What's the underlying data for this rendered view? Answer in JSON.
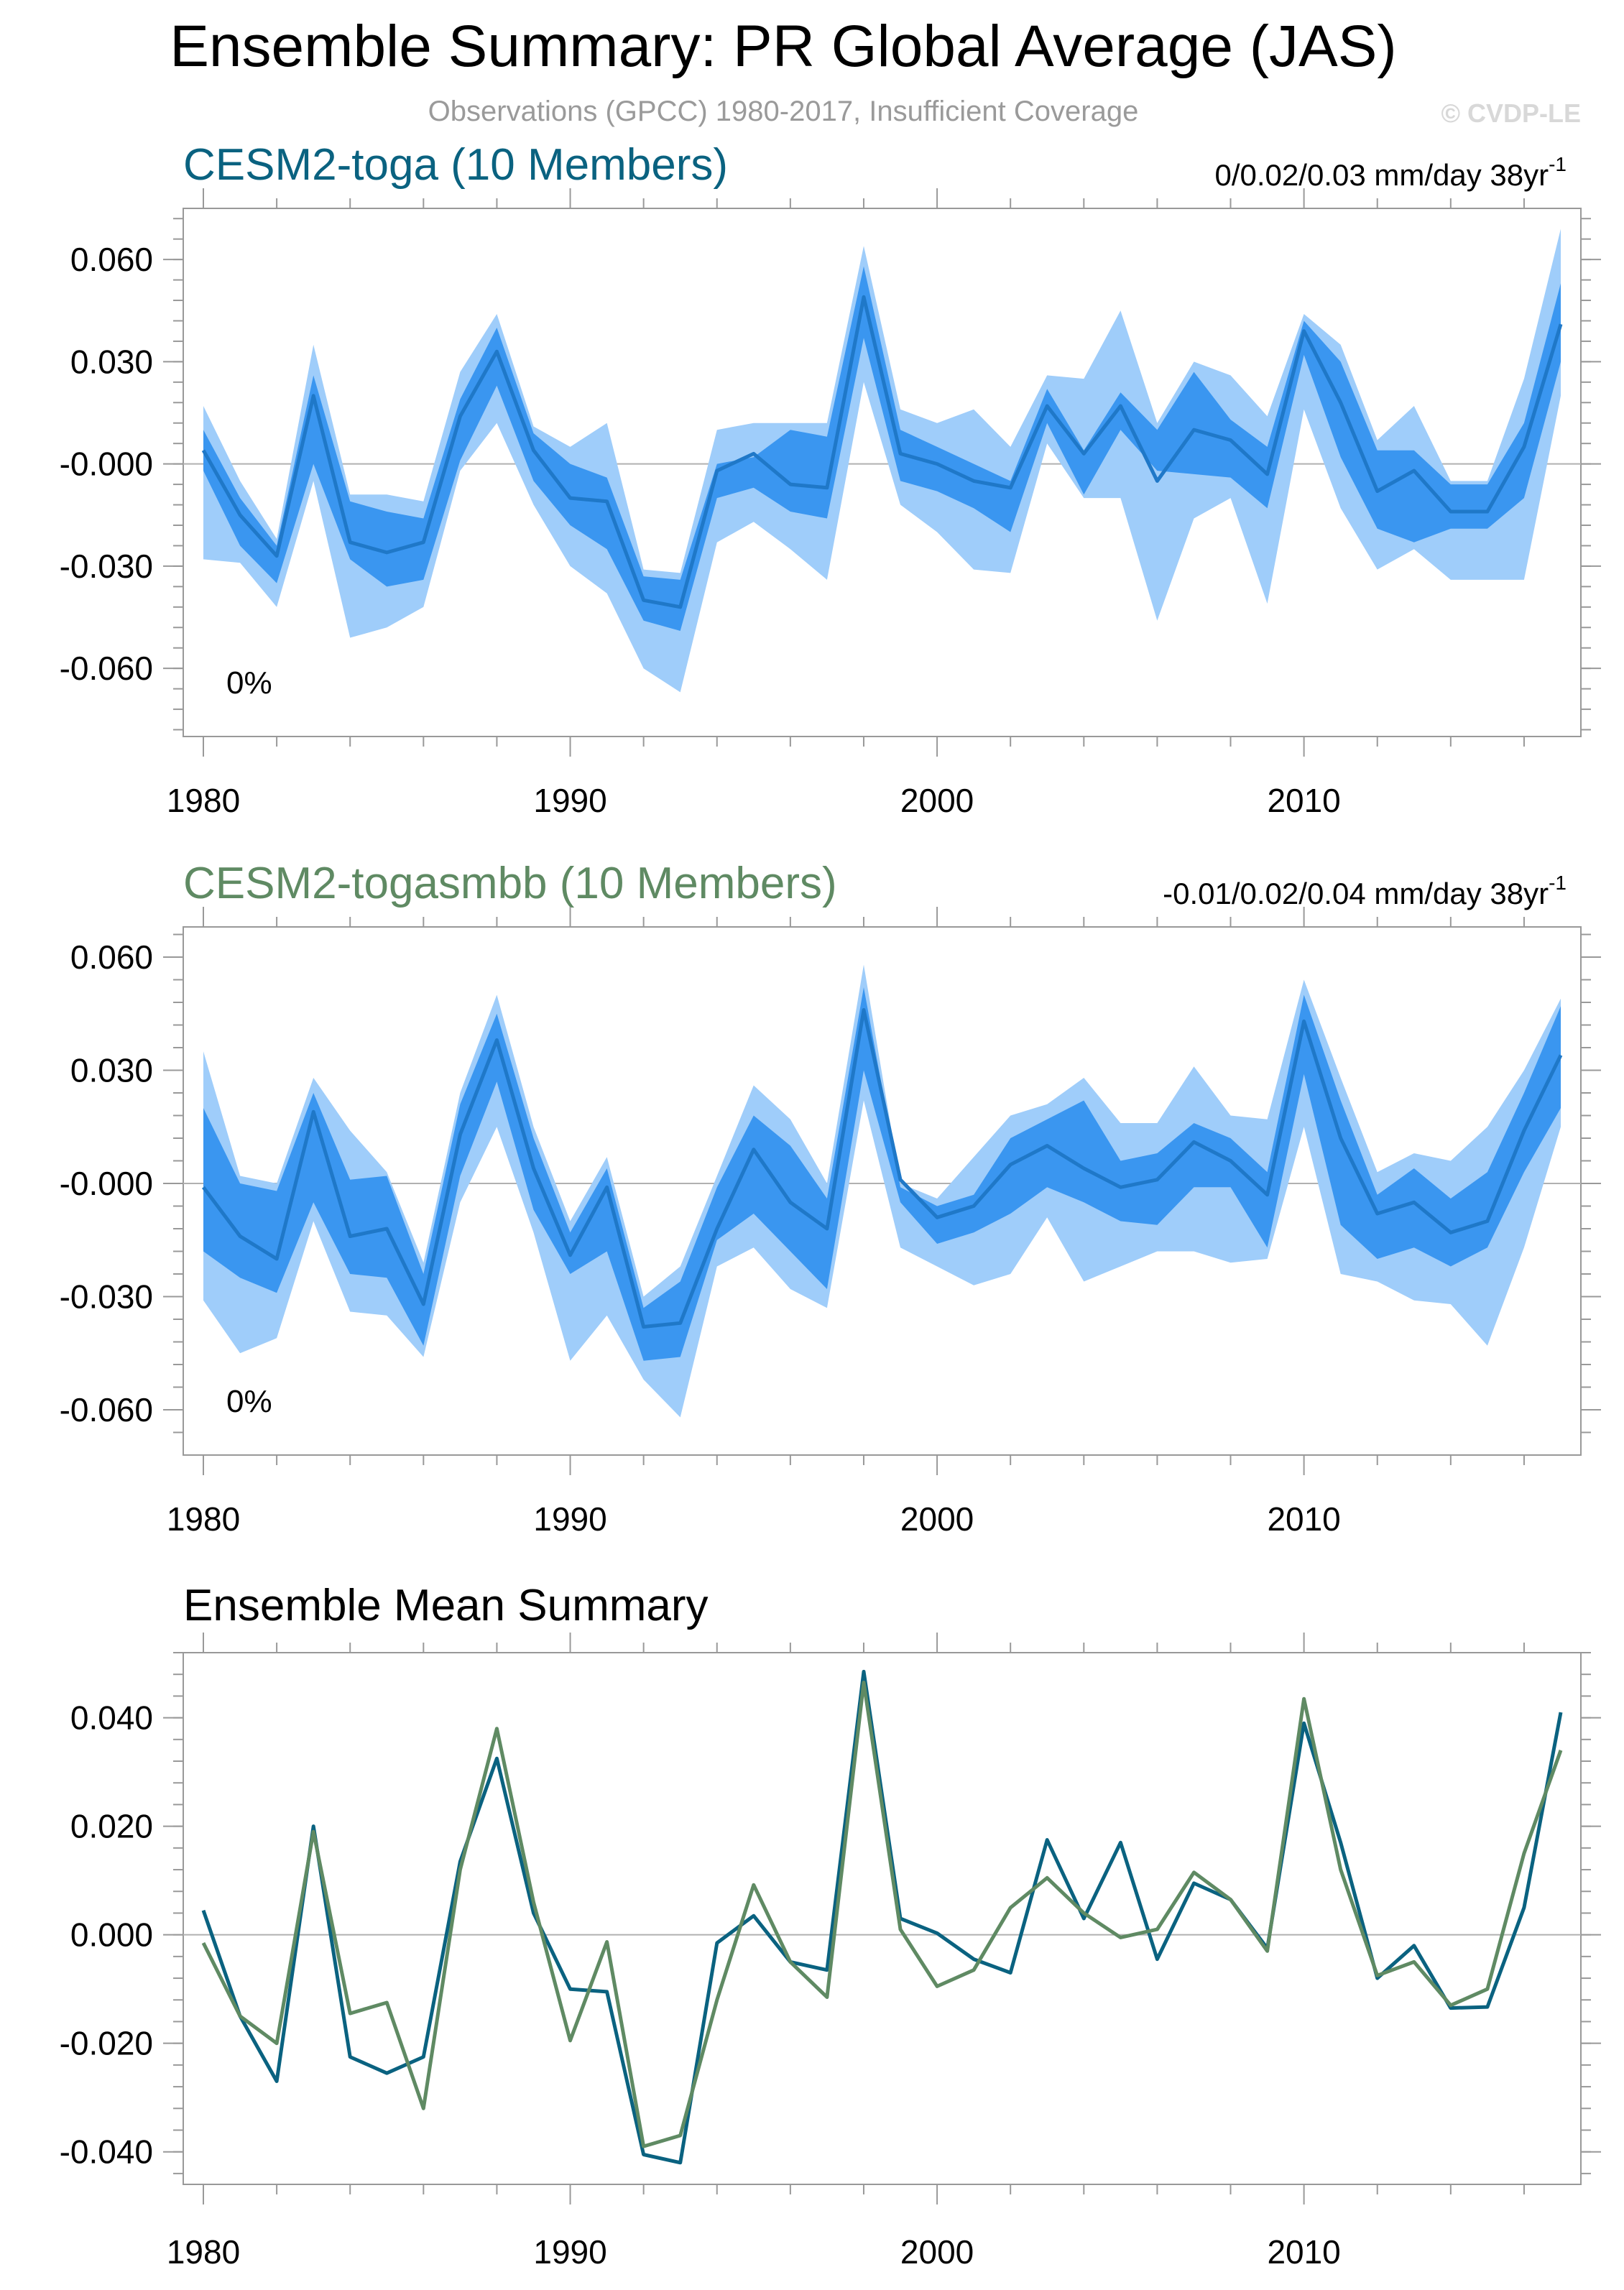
{
  "header": {
    "title": "Ensemble Summary: PR Global Average (JAS)",
    "subtitle": "Observations (GPCC) 1980-2017, Insufficient Coverage",
    "watermark": "© CVDP-LE"
  },
  "colors": {
    "toga": "#0a6280",
    "togasmbb": "#5f8a63",
    "band_outer": "#9fcdfa",
    "band_inner": "#3a96f0",
    "mean_line": "#1f78c8"
  },
  "chart_data": [
    {
      "type": "area",
      "title": "CESM2-toga (10 Members)",
      "title_color": "#0a6280",
      "trend_label": "0/0.02/0.03 mm/day 38yr",
      "trend_exp": "-1",
      "pct_label": "0%",
      "x": [
        1980,
        1981,
        1982,
        1983,
        1984,
        1985,
        1986,
        1987,
        1988,
        1989,
        1990,
        1991,
        1992,
        1993,
        1994,
        1995,
        1996,
        1997,
        1998,
        1999,
        2000,
        2001,
        2002,
        2003,
        2004,
        2005,
        2006,
        2007,
        2008,
        2009,
        2010,
        2011,
        2012,
        2013,
        2014,
        2015,
        2016,
        2017
      ],
      "xticks": [
        1980,
        1990,
        2000,
        2010
      ],
      "xlim": [
        1980,
        2017
      ],
      "ylim": [
        -0.08,
        0.075
      ],
      "yticks": [
        0.06,
        0.03,
        -0.0,
        -0.03,
        -0.06
      ],
      "ytick_labels": [
        "0.060",
        "0.030",
        "-0.000",
        "-0.030",
        "-0.060"
      ],
      "series": [
        {
          "name": "max",
          "values": [
            0.017,
            -0.005,
            -0.022,
            0.035,
            -0.009,
            -0.009,
            -0.011,
            0.027,
            0.044,
            0.011,
            0.005,
            0.012,
            -0.031,
            -0.032,
            0.01,
            0.012,
            0.012,
            0.012,
            0.064,
            0.016,
            0.012,
            0.016,
            0.005,
            0.026,
            0.025,
            0.045,
            0.012,
            0.03,
            0.026,
            0.014,
            0.044,
            0.035,
            0.007,
            0.017,
            -0.005,
            -0.005,
            0.025,
            0.069
          ]
        },
        {
          "name": "p75",
          "values": [
            0.01,
            -0.01,
            -0.024,
            0.026,
            -0.011,
            -0.014,
            -0.016,
            0.019,
            0.04,
            0.009,
            0.0,
            -0.004,
            -0.033,
            -0.034,
            0.0,
            0.002,
            0.01,
            0.008,
            0.058,
            0.01,
            0.005,
            0.0,
            -0.005,
            0.022,
            0.004,
            0.021,
            0.01,
            0.027,
            0.013,
            0.005,
            0.042,
            0.03,
            0.004,
            0.004,
            -0.006,
            -0.006,
            0.012,
            0.053
          ]
        },
        {
          "name": "mean",
          "values": [
            0.004,
            -0.015,
            -0.027,
            0.02,
            -0.023,
            -0.026,
            -0.023,
            0.014,
            0.033,
            0.004,
            -0.01,
            -0.011,
            -0.04,
            -0.042,
            -0.002,
            0.003,
            -0.006,
            -0.007,
            0.049,
            0.003,
            0.0,
            -0.005,
            -0.007,
            0.017,
            0.003,
            0.017,
            -0.005,
            0.01,
            0.007,
            -0.003,
            0.039,
            0.018,
            -0.008,
            -0.002,
            -0.014,
            -0.014,
            0.005,
            0.041
          ]
        },
        {
          "name": "p25",
          "values": [
            -0.002,
            -0.024,
            -0.035,
            0.0,
            -0.028,
            -0.036,
            -0.034,
            0.001,
            0.023,
            -0.005,
            -0.018,
            -0.025,
            -0.046,
            -0.049,
            -0.01,
            -0.007,
            -0.014,
            -0.016,
            0.037,
            -0.005,
            -0.008,
            -0.013,
            -0.02,
            0.012,
            -0.009,
            0.01,
            -0.002,
            -0.003,
            -0.004,
            -0.013,
            0.032,
            0.002,
            -0.019,
            -0.023,
            -0.019,
            -0.019,
            -0.01,
            0.03
          ]
        },
        {
          "name": "min",
          "values": [
            -0.028,
            -0.029,
            -0.042,
            -0.005,
            -0.051,
            -0.048,
            -0.042,
            -0.002,
            0.012,
            -0.012,
            -0.03,
            -0.038,
            -0.06,
            -0.067,
            -0.023,
            -0.017,
            -0.025,
            -0.034,
            0.024,
            -0.012,
            -0.02,
            -0.031,
            -0.032,
            0.006,
            -0.01,
            -0.01,
            -0.046,
            -0.016,
            -0.01,
            -0.041,
            0.016,
            -0.013,
            -0.031,
            -0.025,
            -0.034,
            -0.034,
            -0.034,
            0.02
          ]
        }
      ]
    },
    {
      "type": "area",
      "title": "CESM2-togasmbb (10 Members)",
      "title_color": "#5f8a63",
      "trend_label": "-0.01/0.02/0.04 mm/day 38yr",
      "trend_exp": "-1",
      "pct_label": "0%",
      "x": [
        1980,
        1981,
        1982,
        1983,
        1984,
        1985,
        1986,
        1987,
        1988,
        1989,
        1990,
        1991,
        1992,
        1993,
        1994,
        1995,
        1996,
        1997,
        1998,
        1999,
        2000,
        2001,
        2002,
        2003,
        2004,
        2005,
        2006,
        2007,
        2008,
        2009,
        2010,
        2011,
        2012,
        2013,
        2014,
        2015,
        2016,
        2017
      ],
      "xticks": [
        1980,
        1990,
        2000,
        2010
      ],
      "xlim": [
        1980,
        2017
      ],
      "ylim": [
        -0.072,
        0.068
      ],
      "yticks": [
        0.06,
        0.03,
        -0.0,
        -0.03,
        -0.06
      ],
      "ytick_labels": [
        "0.060",
        "0.030",
        "-0.000",
        "-0.030",
        "-0.060"
      ],
      "series": [
        {
          "name": "max",
          "values": [
            0.035,
            0.002,
            0.0,
            0.028,
            0.014,
            0.003,
            -0.021,
            0.024,
            0.05,
            0.015,
            -0.01,
            0.007,
            -0.03,
            -0.022,
            0.002,
            0.026,
            0.017,
            0.0,
            0.058,
            0.0,
            -0.004,
            0.007,
            0.018,
            0.021,
            0.028,
            0.016,
            0.016,
            0.031,
            0.018,
            0.017,
            0.054,
            0.028,
            0.003,
            0.008,
            0.006,
            0.015,
            0.03,
            0.049
          ]
        },
        {
          "name": "p75",
          "values": [
            0.02,
            0.0,
            -0.002,
            0.024,
            0.001,
            0.002,
            -0.024,
            0.021,
            0.045,
            0.012,
            -0.013,
            0.004,
            -0.033,
            -0.026,
            -0.001,
            0.018,
            0.01,
            -0.004,
            0.052,
            -0.001,
            -0.006,
            -0.003,
            0.012,
            0.017,
            0.022,
            0.006,
            0.008,
            0.016,
            0.012,
            0.003,
            0.05,
            0.022,
            -0.003,
            0.004,
            -0.004,
            0.003,
            0.024,
            0.047
          ]
        },
        {
          "name": "mean",
          "values": [
            -0.001,
            -0.014,
            -0.02,
            0.019,
            -0.014,
            -0.012,
            -0.032,
            0.013,
            0.038,
            0.004,
            -0.019,
            -0.001,
            -0.038,
            -0.037,
            -0.012,
            0.009,
            -0.005,
            -0.012,
            0.046,
            0.001,
            -0.009,
            -0.006,
            0.005,
            0.01,
            0.004,
            -0.001,
            0.001,
            0.011,
            0.006,
            -0.003,
            0.043,
            0.012,
            -0.008,
            -0.005,
            -0.013,
            -0.01,
            0.014,
            0.034
          ]
        },
        {
          "name": "p25",
          "values": [
            -0.018,
            -0.025,
            -0.029,
            -0.005,
            -0.024,
            -0.025,
            -0.043,
            0.002,
            0.027,
            -0.007,
            -0.024,
            -0.018,
            -0.047,
            -0.046,
            -0.015,
            -0.008,
            -0.018,
            -0.028,
            0.03,
            -0.005,
            -0.016,
            -0.013,
            -0.008,
            -0.001,
            -0.005,
            -0.01,
            -0.011,
            -0.001,
            -0.001,
            -0.017,
            0.029,
            -0.011,
            -0.02,
            -0.017,
            -0.022,
            -0.017,
            0.003,
            0.02
          ]
        },
        {
          "name": "min",
          "values": [
            -0.031,
            -0.045,
            -0.041,
            -0.01,
            -0.034,
            -0.035,
            -0.046,
            -0.005,
            0.015,
            -0.013,
            -0.047,
            -0.035,
            -0.052,
            -0.062,
            -0.022,
            -0.017,
            -0.028,
            -0.033,
            0.022,
            -0.017,
            -0.022,
            -0.027,
            -0.024,
            -0.009,
            -0.026,
            -0.022,
            -0.018,
            -0.018,
            -0.021,
            -0.02,
            0.015,
            -0.024,
            -0.026,
            -0.031,
            -0.032,
            -0.043,
            -0.017,
            0.015
          ]
        }
      ]
    },
    {
      "type": "line",
      "title": "Ensemble Mean Summary",
      "x": [
        1980,
        1981,
        1982,
        1983,
        1984,
        1985,
        1986,
        1987,
        1988,
        1989,
        1990,
        1991,
        1992,
        1993,
        1994,
        1995,
        1996,
        1997,
        1998,
        1999,
        2000,
        2001,
        2002,
        2003,
        2004,
        2005,
        2006,
        2007,
        2008,
        2009,
        2010,
        2011,
        2012,
        2013,
        2014,
        2015,
        2016,
        2017
      ],
      "xticks": [
        1980,
        1990,
        2000,
        2010
      ],
      "xlim": [
        1980,
        2017
      ],
      "ylim": [
        -0.046,
        0.052
      ],
      "yticks": [
        0.04,
        0.02,
        0.0,
        -0.02,
        -0.04
      ],
      "ytick_labels": [
        "0.040",
        "0.020",
        "0.000",
        "-0.020",
        "-0.040"
      ],
      "series": [
        {
          "name": "CESM2-toga",
          "color": "#0a6280",
          "values": [
            0.0045,
            -0.015,
            -0.027,
            0.02,
            -0.0225,
            -0.0255,
            -0.0225,
            0.0135,
            0.0325,
            0.004,
            -0.01,
            -0.0105,
            -0.0405,
            -0.042,
            -0.0015,
            0.0035,
            -0.005,
            -0.0065,
            0.0485,
            0.003,
            0.0003,
            -0.0045,
            -0.007,
            0.0175,
            0.003,
            0.017,
            -0.0045,
            0.0095,
            0.0065,
            -0.0025,
            0.039,
            0.017,
            -0.008,
            -0.002,
            -0.0135,
            -0.0133,
            0.005,
            0.041
          ]
        },
        {
          "name": "CESM2-togasmbb",
          "color": "#5f8a63",
          "values": [
            -0.0015,
            -0.015,
            -0.02,
            0.019,
            -0.0145,
            -0.0125,
            -0.032,
            0.012,
            0.038,
            0.006,
            -0.0195,
            -0.0013,
            -0.039,
            -0.037,
            -0.012,
            0.0092,
            -0.005,
            -0.0115,
            0.0465,
            0.001,
            -0.0095,
            -0.0065,
            0.005,
            0.0105,
            0.004,
            -0.0005,
            0.001,
            0.0115,
            0.0065,
            -0.003,
            0.0435,
            0.012,
            -0.0075,
            -0.005,
            -0.013,
            -0.01,
            0.015,
            0.034
          ]
        }
      ]
    }
  ]
}
